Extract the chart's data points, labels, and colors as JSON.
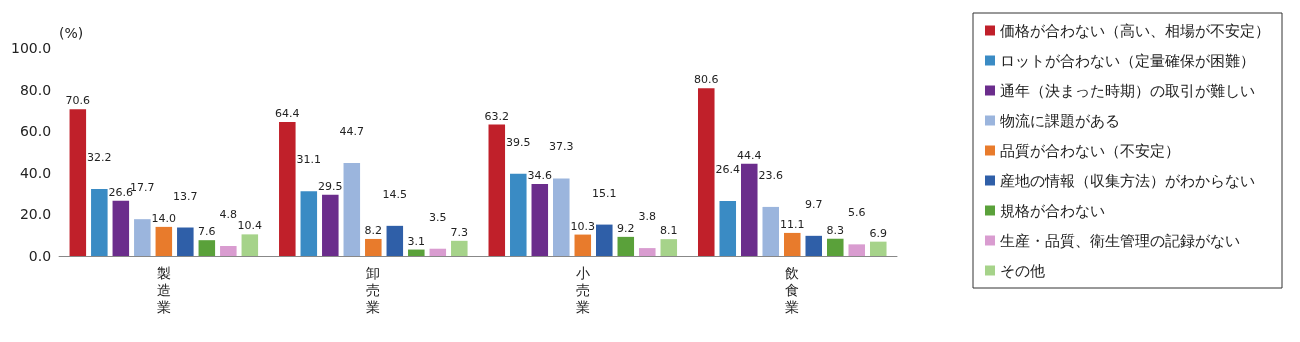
{
  "chart_data": {
    "type": "bar",
    "ylabel": "(%)",
    "categories": [
      "製造業",
      "卸売業",
      "小売業",
      "飲食業"
    ],
    "ylim": [
      0,
      100
    ],
    "yticks": [
      {
        "value": 0,
        "label": "0.0"
      },
      {
        "value": 20,
        "label": "20.0"
      },
      {
        "value": 40,
        "label": "40.0"
      },
      {
        "value": 60,
        "label": "60.0"
      },
      {
        "value": 80,
        "label": "80.0"
      },
      {
        "value": 100,
        "label": "100.0"
      }
    ],
    "grid": false,
    "legend": "right",
    "series": [
      {
        "name": "価格が合わない（高い、相場が不安定）",
        "color": "#c0202a",
        "values": [
          70.6,
          64.4,
          63.2,
          80.6
        ],
        "value_labels": [
          "70.6",
          "64.4",
          "63.2",
          "80.6"
        ]
      },
      {
        "name": "ロットが合わない（定量確保が困難）",
        "color": "#3a8bc4",
        "values": [
          32.2,
          31.1,
          39.5,
          26.4
        ],
        "value_labels": [
          "32.2",
          "31.1",
          "39.5",
          "26.4"
        ]
      },
      {
        "name": "通年（決まった時期）の取引が難しい",
        "color": "#6b2d8c",
        "values": [
          26.6,
          29.5,
          34.6,
          44.4
        ],
        "value_labels": [
          "26.6",
          "29.5",
          "34.6",
          "44.4"
        ]
      },
      {
        "name": "物流に課題がある",
        "color": "#9bb5dd",
        "values": [
          17.7,
          44.7,
          37.3,
          23.6
        ],
        "value_labels": [
          "17.7",
          "44.7",
          "37.3",
          "23.6"
        ]
      },
      {
        "name": "品質が合わない（不安定）",
        "color": "#e87b2c",
        "values": [
          14.0,
          8.2,
          10.3,
          11.1
        ],
        "value_labels": [
          "14.0",
          "8.2",
          "10.3",
          "11.1"
        ]
      },
      {
        "name": "産地の情報（収集方法）がわからない",
        "color": "#2f5fa8",
        "values": [
          13.7,
          14.5,
          15.1,
          9.7
        ],
        "value_labels": [
          "13.7",
          "14.5",
          "15.1",
          "9.7"
        ]
      },
      {
        "name": "規格が合わない",
        "color": "#5aa13a",
        "values": [
          7.6,
          3.1,
          9.2,
          8.3
        ],
        "value_labels": [
          "7.6",
          "3.1",
          "9.2",
          "8.3"
        ]
      },
      {
        "name": "生産・品質、衛生管理の記録がない",
        "color": "#d99cd0",
        "values": [
          4.8,
          3.5,
          3.8,
          5.6
        ],
        "value_labels": [
          "4.8",
          "3.5",
          "3.8",
          "5.6"
        ]
      },
      {
        "name": "その他",
        "color": "#a6d38a",
        "values": [
          10.4,
          7.3,
          8.1,
          6.9
        ],
        "value_labels": [
          "10.4",
          "7.3",
          "8.1",
          "6.9"
        ]
      }
    ]
  }
}
